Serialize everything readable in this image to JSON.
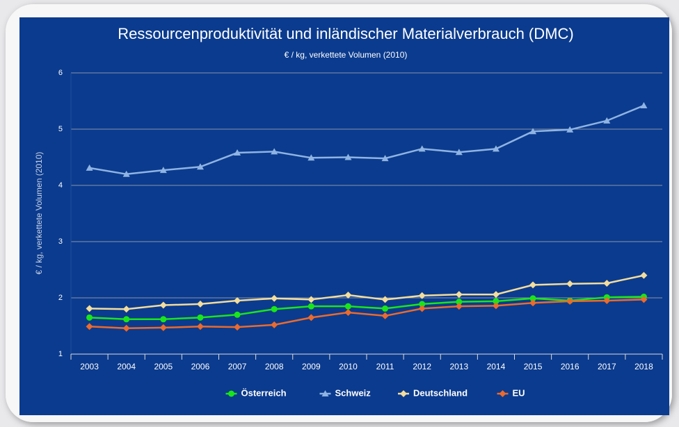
{
  "chart_data": {
    "type": "line",
    "title": "Ressourcenproduktivität und inländischer Materialverbrauch (DMC)",
    "subtitle": "€ / kg, verkettete Volumen (2010)",
    "y_label": "€ / kg, verkettete Volumen (2010)",
    "categories": [
      "2003",
      "2004",
      "2005",
      "2006",
      "2007",
      "2008",
      "2009",
      "2010",
      "2011",
      "2012",
      "2013",
      "2014",
      "2015",
      "2016",
      "2017",
      "2018"
    ],
    "series": [
      {
        "name": "Österreich",
        "color": "#19e619",
        "marker": "circle",
        "values": [
          1.65,
          1.62,
          1.62,
          1.65,
          1.7,
          1.8,
          1.85,
          1.85,
          1.81,
          1.89,
          1.93,
          1.94,
          1.99,
          1.95,
          2.01,
          2.02
        ]
      },
      {
        "name": "Schweiz",
        "color": "#8fb4e3",
        "marker": "triangle",
        "values": [
          4.31,
          4.2,
          4.27,
          4.33,
          4.58,
          4.6,
          4.49,
          4.5,
          4.48,
          4.65,
          4.59,
          4.65,
          4.96,
          4.99,
          5.15,
          5.42
        ]
      },
      {
        "name": "Deutschland",
        "color": "#f3dd9c",
        "marker": "diamond",
        "values": [
          1.81,
          1.8,
          1.87,
          1.89,
          1.95,
          1.99,
          1.97,
          2.05,
          1.97,
          2.04,
          2.06,
          2.06,
          2.23,
          2.25,
          2.26,
          2.4
        ]
      },
      {
        "name": "EU",
        "color": "#ec6a2c",
        "marker": "diamond",
        "values": [
          1.49,
          1.46,
          1.47,
          1.49,
          1.48,
          1.52,
          1.65,
          1.74,
          1.68,
          1.81,
          1.85,
          1.86,
          1.91,
          1.94,
          1.95,
          1.97
        ]
      }
    ],
    "ylim": [
      1,
      6
    ],
    "yticks": [
      1,
      2,
      3,
      4,
      5,
      6
    ],
    "grid": true,
    "legend": "bottom"
  }
}
